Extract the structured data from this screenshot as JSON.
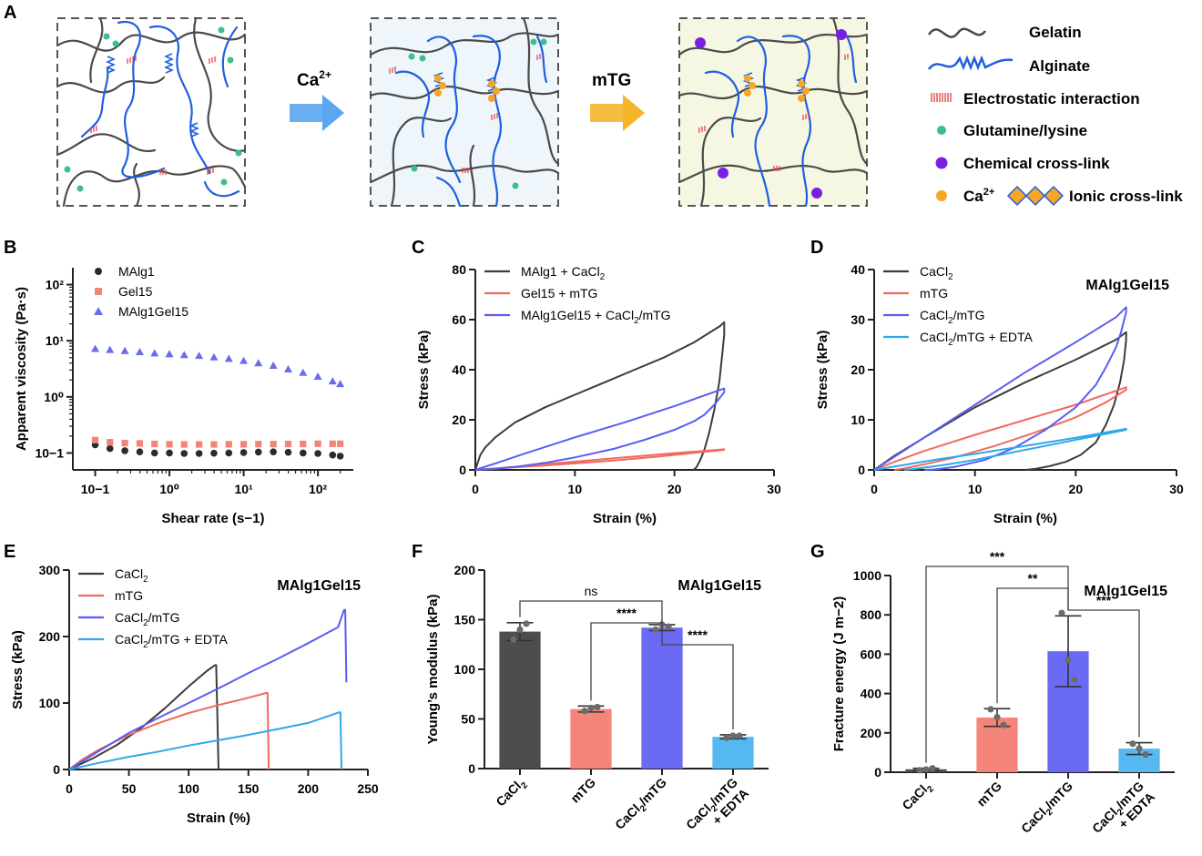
{
  "panels": {
    "A": "A",
    "B": "B",
    "C": "C",
    "D": "D",
    "E": "E",
    "F": "F",
    "G": "G"
  },
  "schematic": {
    "arrow1_label": "Ca",
    "arrow1_sup": "2+",
    "arrow2_label": "mTG",
    "legend": {
      "gelatin": "Gelatin",
      "alginate": "Alginate",
      "electrostatic": "Electrostatic interaction",
      "glutamine": "Glutamine/lysine",
      "chemical": "Chemical cross-link",
      "ca_label": "Ca",
      "ca_sup": "2+",
      "ionic": "Ionic cross-link"
    },
    "colors": {
      "gelatin": "#4a4a4a",
      "alginate": "#1f5fe0",
      "electrostatic": "#e34a4a",
      "glutamine": "#3dbf8a",
      "chemical": "#7a1fe0",
      "ca": "#f5a623",
      "box2_bg": "#eef5fb",
      "box3_bg": "#f6f7e3",
      "arrow1": "#5aa6f0",
      "arrow2": "#f5b52a"
    }
  },
  "chart_data": [
    {
      "id": "B",
      "type": "scatter",
      "xlabel": "Shear rate (s−1)",
      "ylabel": "Apparent viscosity (Pa·s)",
      "xscale": "log",
      "yscale": "log",
      "xlim": [
        0.05,
        300
      ],
      "ylim": [
        0.05,
        200
      ],
      "xticks": [
        "10−1",
        "10⁰",
        "10¹",
        "10²"
      ],
      "yticks": [
        "10−1",
        "10⁰",
        "10¹",
        "10²"
      ],
      "legend": "top-left",
      "x": [
        0.1,
        0.158,
        0.251,
        0.398,
        0.631,
        1,
        1.58,
        2.51,
        3.98,
        6.31,
        10,
        15.8,
        25.1,
        39.8,
        63.1,
        100,
        158,
        200
      ],
      "series": [
        {
          "name": "MAlg1",
          "marker": "circle",
          "color": "#2b2b2b",
          "values": [
            0.14,
            0.12,
            0.11,
            0.105,
            0.1,
            0.1,
            0.098,
            0.098,
            0.099,
            0.1,
            0.102,
            0.104,
            0.105,
            0.103,
            0.1,
            0.098,
            0.092,
            0.088
          ]
        },
        {
          "name": "Gel15",
          "marker": "square",
          "color": "#f0857a",
          "values": [
            0.17,
            0.155,
            0.15,
            0.148,
            0.145,
            0.143,
            0.142,
            0.142,
            0.142,
            0.143,
            0.143,
            0.144,
            0.144,
            0.145,
            0.145,
            0.146,
            0.146,
            0.146
          ]
        },
        {
          "name": "MAlg1Gel15",
          "marker": "triangle",
          "color": "#6a6cf0",
          "values": [
            7.2,
            6.9,
            6.6,
            6.3,
            6.0,
            5.8,
            5.6,
            5.4,
            5.1,
            4.8,
            4.4,
            4.0,
            3.6,
            3.1,
            2.7,
            2.3,
            1.9,
            1.7
          ]
        }
      ]
    },
    {
      "id": "C",
      "type": "line",
      "xlabel": "Strain (%)",
      "ylabel": "Stress (kPa)",
      "xlim": [
        0,
        30
      ],
      "ylim": [
        0,
        80
      ],
      "xticks": [
        0,
        10,
        20,
        30
      ],
      "yticks": [
        0,
        20,
        40,
        60,
        80
      ],
      "legend": "top-left",
      "series": [
        {
          "name": "MAlg1 + CaCl₂",
          "label_main": "MAlg1 + CaCl",
          "label_sub": "2",
          "color": "#3c3c3c",
          "x": [
            0,
            0.5,
            1,
            2,
            3,
            4,
            5,
            7,
            10,
            13,
            16,
            19,
            22,
            24,
            24.6,
            25,
            25,
            24.8,
            24.5,
            24,
            23.5,
            23,
            22.6,
            22.2,
            21.9
          ],
          "y": [
            0,
            6,
            9,
            13,
            16,
            19,
            21,
            25,
            30,
            35,
            40,
            45,
            51,
            56,
            57.5,
            59,
            54,
            46,
            35,
            24,
            15,
            8,
            4,
            1,
            0
          ]
        },
        {
          "name": "Gel15 + mTG",
          "color": "#f06a5e",
          "x": [
            0,
            2,
            5,
            10,
            15,
            20,
            25,
            25,
            22,
            18,
            14,
            10,
            6,
            3,
            1,
            0
          ],
          "y": [
            0,
            0.6,
            1.6,
            3.3,
            5,
            6.7,
            8.2,
            8,
            6.8,
            5.2,
            3.8,
            2.6,
            1.5,
            0.8,
            0.3,
            0
          ]
        },
        {
          "name": "MAlg1Gel15 + CaCl₂/mTG",
          "label_main": "MAlg1Gel15 + CaCl",
          "label_sub": "2",
          "label_tail": "/mTG",
          "color": "#5a5ef0",
          "x": [
            0,
            2,
            5,
            10,
            15,
            20,
            25,
            25,
            24,
            23,
            22,
            20,
            17,
            14,
            10,
            7,
            4,
            2,
            0
          ],
          "y": [
            0,
            2.6,
            6.6,
            13,
            19,
            25.5,
            32.5,
            31,
            26,
            22,
            19.5,
            16,
            12,
            8.5,
            5,
            2.8,
            1.2,
            0.4,
            0
          ]
        }
      ]
    },
    {
      "id": "D",
      "type": "line",
      "annotation": "MAlg1Gel15",
      "xlabel": "Strain (%)",
      "ylabel": "Stress (kPa)",
      "xlim": [
        0,
        30
      ],
      "ylim": [
        0,
        40
      ],
      "xticks": [
        0,
        10,
        20,
        30
      ],
      "yticks": [
        0,
        10,
        20,
        30,
        40
      ],
      "legend": "top-left",
      "series": [
        {
          "name": "CaCl₂",
          "label_main": "CaCl",
          "label_sub": "2",
          "color": "#3c3c3c",
          "x": [
            0,
            2,
            5,
            10,
            15,
            20,
            24,
            25,
            25,
            24.8,
            24.4,
            23.8,
            23,
            22,
            20.5,
            19,
            17.5,
            16,
            15
          ],
          "y": [
            0,
            2.8,
            6.5,
            12.5,
            17.5,
            22,
            26,
            27.5,
            26,
            22,
            17.5,
            13,
            9,
            5.5,
            3,
            1.6,
            0.8,
            0.2,
            0
          ]
        },
        {
          "name": "mTG",
          "color": "#f06a5e",
          "x": [
            0,
            2,
            5,
            10,
            15,
            20,
            25,
            25,
            23,
            20,
            16,
            12,
            8,
            5,
            3,
            2
          ],
          "y": [
            0,
            1.6,
            3.8,
            7,
            10,
            13,
            16.5,
            16,
            13.5,
            10.5,
            7.5,
            4.8,
            2.5,
            1.1,
            0.3,
            0
          ]
        },
        {
          "name": "CaCl₂/mTG",
          "label_main": "CaCl",
          "label_sub": "2",
          "label_tail": "/mTG",
          "color": "#5a5ef0",
          "x": [
            0,
            2,
            5,
            10,
            15,
            20,
            24,
            25,
            25,
            24.5,
            24,
            23,
            22,
            20,
            17,
            14,
            11,
            8,
            6,
            5
          ],
          "y": [
            0,
            2.6,
            6.5,
            13,
            19.5,
            25.5,
            30.5,
            32.5,
            31.5,
            27.5,
            24.5,
            20.5,
            17,
            12.5,
            8,
            4.5,
            2,
            0.6,
            0.1,
            0
          ]
        },
        {
          "name": "CaCl₂/mTG + EDTA",
          "label_main": "CaCl",
          "label_sub": "2",
          "label_tail": "/mTG + EDTA",
          "color": "#2ea8e8",
          "x": [
            0,
            3,
            6,
            10,
            15,
            20,
            25,
            25,
            22,
            19,
            16,
            13,
            10,
            7,
            4,
            3
          ],
          "y": [
            0,
            1,
            2,
            3.2,
            4.8,
            6.4,
            8.2,
            8,
            6.8,
            5.6,
            4.4,
            3.2,
            2,
            1,
            0.2,
            0
          ]
        }
      ]
    },
    {
      "id": "E",
      "type": "line",
      "annotation": "MAlg1Gel15",
      "xlabel": "Strain (%)",
      "ylabel": "Stress (kPa)",
      "xlim": [
        0,
        250
      ],
      "ylim": [
        0,
        300
      ],
      "xticks": [
        0,
        50,
        100,
        150,
        200,
        250
      ],
      "yticks": [
        0,
        100,
        200,
        300
      ],
      "legend": "top-left",
      "series": [
        {
          "name": "CaCl₂",
          "label_main": "CaCl",
          "label_sub": "2",
          "color": "#3c3c3c",
          "x": [
            0,
            20,
            40,
            60,
            80,
            100,
            115,
            122,
            123,
            124,
            125
          ],
          "y": [
            0,
            17,
            37,
            62,
            92,
            125,
            148,
            157,
            157,
            80,
            0
          ]
        },
        {
          "name": "mTG",
          "color": "#f06a5e",
          "x": [
            0,
            10,
            25,
            50,
            75,
            100,
            125,
            150,
            165,
            166,
            167
          ],
          "y": [
            0,
            14,
            30,
            52,
            70,
            85,
            97,
            108,
            115,
            115,
            0
          ]
        },
        {
          "name": "CaCl₂/mTG",
          "label_main": "CaCl",
          "label_sub": "2",
          "label_tail": "/mTG",
          "color": "#5a5ef0",
          "x": [
            0,
            25,
            50,
            75,
            100,
            125,
            150,
            175,
            200,
            225,
            230,
            231,
            232
          ],
          "y": [
            0,
            28,
            55,
            78,
            100,
            122,
            145,
            167,
            190,
            214,
            240,
            240,
            131
          ]
        },
        {
          "name": "CaCl₂/mTG + EDTA",
          "label_main": "CaCl",
          "label_sub": "2",
          "label_tail": "/mTG + EDTA",
          "color": "#2ea8e8",
          "x": [
            0,
            25,
            50,
            75,
            100,
            125,
            150,
            175,
            200,
            226,
            227,
            228
          ],
          "y": [
            0,
            10,
            19,
            27,
            36,
            44,
            52,
            61,
            70,
            86,
            86,
            0
          ]
        }
      ]
    },
    {
      "id": "F",
      "type": "bar",
      "annotation": "MAlg1Gel15",
      "ylabel": "Young’s modulus (kPa)",
      "ylim": [
        0,
        200
      ],
      "yticks": [
        0,
        50,
        100,
        150,
        200
      ],
      "categories": [
        "CaCl₂",
        "mTG",
        "CaCl₂/mTG",
        "CaCl₂/mTG + EDTA"
      ],
      "cat_labels": [
        {
          "lines": [
            {
              "main": "CaCl",
              "sub": "2",
              "tail": ""
            }
          ]
        },
        {
          "lines": [
            {
              "main": "mTG",
              "sub": "",
              "tail": ""
            }
          ]
        },
        {
          "lines": [
            {
              "main": "CaCl",
              "sub": "2",
              "tail": "/mTG"
            }
          ]
        },
        {
          "lines": [
            {
              "main": "CaCl",
              "sub": "2",
              "tail": "/mTG"
            },
            {
              "main": "+ EDTA",
              "sub": "",
              "tail": ""
            }
          ]
        }
      ],
      "values": [
        138,
        60,
        142,
        32
      ],
      "errors": [
        9,
        3,
        3,
        2
      ],
      "points": [
        [
          130,
          140,
          146
        ],
        [
          58,
          61,
          62
        ],
        [
          140,
          145,
          143
        ],
        [
          31,
          33,
          33
        ]
      ],
      "colors": [
        "#4d4d4d",
        "#f5857a",
        "#6a6af5",
        "#55b8f0"
      ],
      "significance": [
        {
          "from": 0,
          "to": 2,
          "label": "ns",
          "bold": false
        },
        {
          "from": 1,
          "to": 2,
          "label": "****",
          "bold": true
        },
        {
          "from": 2,
          "to": 3,
          "label": "****",
          "bold": true
        }
      ]
    },
    {
      "id": "G",
      "type": "bar",
      "annotation": "MAlg1Gel15",
      "ylabel": "Fracture energy (J m−2)",
      "ylim": [
        0,
        1000
      ],
      "yticks": [
        0,
        200,
        400,
        600,
        800,
        1000
      ],
      "categories": [
        "CaCl₂",
        "mTG",
        "CaCl₂/mTG",
        "CaCl₂/mTG + EDTA"
      ],
      "cat_labels": [
        {
          "lines": [
            {
              "main": "CaCl",
              "sub": "2",
              "tail": ""
            }
          ]
        },
        {
          "lines": [
            {
              "main": "mTG",
              "sub": "",
              "tail": ""
            }
          ]
        },
        {
          "lines": [
            {
              "main": "CaCl",
              "sub": "2",
              "tail": "/mTG"
            }
          ]
        },
        {
          "lines": [
            {
              "main": "CaCl",
              "sub": "2",
              "tail": "/mTG"
            },
            {
              "main": "+ EDTA",
              "sub": "",
              "tail": ""
            }
          ]
        }
      ],
      "values": [
        15,
        278,
        615,
        120
      ],
      "errors": [
        5,
        45,
        180,
        30
      ],
      "points": [
        [
          10,
          14,
          20
        ],
        [
          320,
          280,
          240
        ],
        [
          810,
          570,
          470
        ],
        [
          145,
          120,
          90
        ]
      ],
      "colors": [
        "#4d4d4d",
        "#f5857a",
        "#6a6af5",
        "#55b8f0"
      ],
      "significance": [
        {
          "from": 0,
          "to": 2,
          "label": "***",
          "bold": true
        },
        {
          "from": 1,
          "to": 2,
          "label": "**",
          "bold": true
        },
        {
          "from": 2,
          "to": 3,
          "label": "***",
          "bold": true
        }
      ]
    }
  ]
}
